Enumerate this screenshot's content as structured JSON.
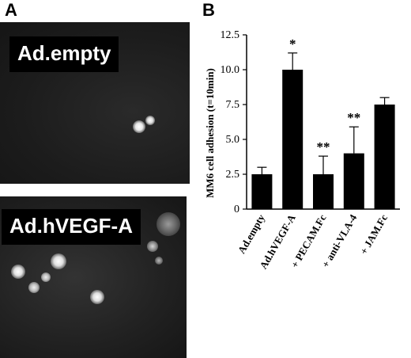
{
  "panels": {
    "a_letter": "A",
    "b_letter": "B"
  },
  "micrographs": [
    {
      "label": "Ad.empty"
    },
    {
      "label": "Ad.hVEGF-A"
    }
  ],
  "chart_data": {
    "type": "bar",
    "categories": [
      "Ad.empty",
      "Ad.hVEGF-A",
      "+ PECAM.Fc",
      "+ anti-VLA-4",
      "+ JAM.Fc"
    ],
    "values": [
      2.5,
      10.0,
      2.5,
      4.0,
      7.5
    ],
    "errors": [
      0.5,
      1.2,
      1.3,
      1.9,
      0.5
    ],
    "significance": [
      "",
      "*",
      "**",
      "**",
      ""
    ],
    "ylabel": "MM6 cell adhesion (t=10min)",
    "ylim": [
      0,
      12.5
    ],
    "yticks": [
      "0",
      "2.5",
      "5.0",
      "7.5",
      "10.0",
      "12.5"
    ],
    "bar_color": "#000000",
    "grid": false
  }
}
